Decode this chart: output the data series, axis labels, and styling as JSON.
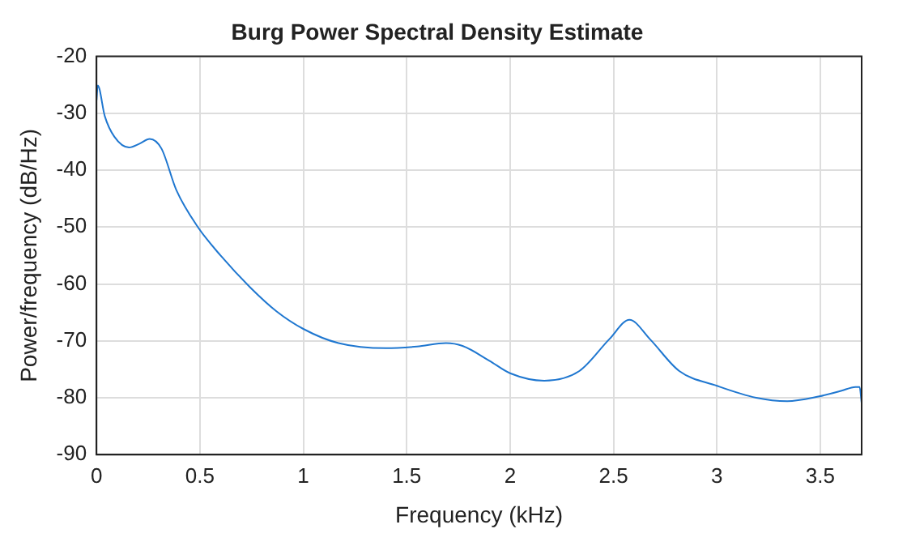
{
  "chart_data": {
    "type": "line",
    "title": "Burg Power Spectral Density Estimate",
    "xlabel": "Frequency (kHz)",
    "ylabel": "Power/frequency (dB/Hz)",
    "series": [
      {
        "color": "#1f77d0",
        "x": [
          0,
          0.006,
          0.04,
          0.086,
          0.157,
          0.21,
          0.257,
          0.314,
          0.386,
          0.494,
          0.6,
          0.743,
          0.87,
          1.0,
          1.17,
          1.4,
          1.55,
          1.69,
          1.77,
          1.9,
          2.0,
          2.165,
          2.335,
          2.48,
          2.577,
          2.676,
          2.818,
          3.0,
          3.19,
          3.34,
          3.49,
          3.6,
          3.67,
          3.69,
          3.7
        ],
        "values": [
          -27.7,
          -25.1,
          -30.5,
          -34.1,
          -36.0,
          -35.3,
          -34.5,
          -36.2,
          -43.5,
          -50.2,
          -55.0,
          -60.6,
          -64.8,
          -67.9,
          -70.4,
          -71.3,
          -71.0,
          -70.4,
          -70.9,
          -73.5,
          -75.7,
          -77.0,
          -75.3,
          -69.7,
          -66.3,
          -69.7,
          -75.3,
          -77.9,
          -80.0,
          -80.6,
          -79.8,
          -78.8,
          -78.1,
          -78.1,
          -80.9
        ]
      }
    ],
    "xlim": [
      0,
      3.7
    ],
    "xticks": [
      0,
      0.5,
      1,
      1.5,
      2,
      2.5,
      3,
      3.5
    ],
    "ylim": [
      -90,
      -20
    ],
    "yticks": [
      -90,
      -80,
      -70,
      -60,
      -50,
      -40,
      -30,
      -20
    ],
    "grid": true,
    "marker": "none",
    "line_style": "solid"
  }
}
